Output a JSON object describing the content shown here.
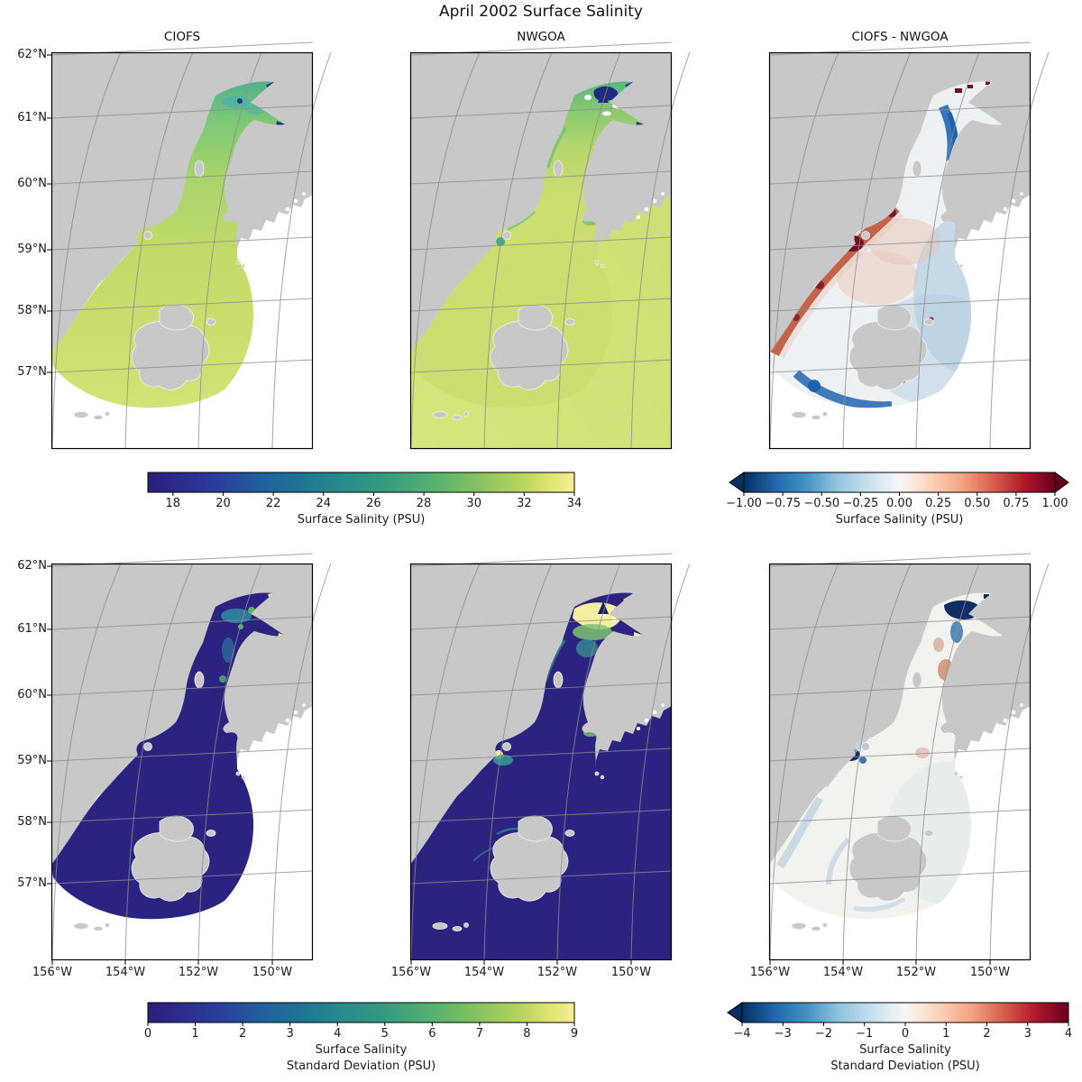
{
  "figure": {
    "title": "April 2002 Surface Salinity"
  },
  "panels": [
    {
      "key": "ciofs_sal",
      "title": "CIOFS",
      "row": 0,
      "col": 0,
      "style": "ciofs",
      "colors": {
        "gradTop": "#4fb289",
        "grad1": "#7cc877",
        "grad2": "#a6d36c",
        "grad3": "#c0da6a",
        "gradBottom": "#d3e275",
        "armTip": "#1d3b8c",
        "teal": "#4fb3a4"
      }
    },
    {
      "key": "nwgoa_sal",
      "title": "NWGOA",
      "row": 0,
      "col": 1,
      "style": "nwgoa",
      "colors": {
        "ocean": "#cbde72",
        "oceanLight": "#d7e57d",
        "gradTop": "#57b77f",
        "grad1": "#8cca70",
        "grad2": "#b4d66c",
        "freshPatch": "#202b80",
        "tealSpot": "#3aa189",
        "fringe": "#6fc276",
        "armTip": "#2a3a8f"
      }
    },
    {
      "key": "diff_sal",
      "title": "CIOFS - NWGOA",
      "row": 0,
      "col": 2,
      "style": "diff",
      "colors": {
        "base": "#eef1f3",
        "paleBlue": "#b7d0e3",
        "blue": "#2e6db6",
        "blueDark": "#1b5fa8",
        "red": "#bb4f33",
        "pink": "#e8c4b4",
        "darkRed": "#6f0e20"
      }
    },
    {
      "key": "ciofs_std",
      "title": "",
      "row": 1,
      "col": 0,
      "style": "ciofs",
      "colors": {
        "base": "#2a2480",
        "teal": "#2f86a0",
        "green": "#5ab45e",
        "yellow": "#e9e973"
      }
    },
    {
      "key": "nwgoa_std",
      "title": "",
      "row": 1,
      "col": 1,
      "style": "nwgoa",
      "colors": {
        "ocean": "#2a2480",
        "base": "#2a2480",
        "yellow": "#f2f0a0",
        "green": "#7cc46e",
        "teal": "#3a9a96",
        "navySpike": "#1c2068"
      }
    },
    {
      "key": "diff_std",
      "title": "",
      "row": 1,
      "col": 2,
      "style": "diff",
      "colors": {
        "base": "#f2f2ef",
        "navy": "#122d66",
        "blue": "#3a78b4",
        "blueLight": "#a9c6dc",
        "red": "#c98a72"
      }
    }
  ],
  "axes": {
    "lat_labels": [
      "62°N",
      "61°N",
      "60°N",
      "59°N",
      "58°N",
      "57°N"
    ],
    "lon_labels": [
      "156°W",
      "154°W",
      "152°W",
      "150°W"
    ]
  },
  "map_colors": {
    "land": "#c8c8c8",
    "ocean_outside": "#ffffff",
    "grid": "#8d8d8d",
    "coast_speck": "#ffffff"
  },
  "colormaps": {
    "haline": [
      [
        0,
        "#2c1f78"
      ],
      [
        0.1,
        "#2c2f92"
      ],
      [
        0.18,
        "#2a429c"
      ],
      [
        0.27,
        "#20609c"
      ],
      [
        0.35,
        "#1d7394"
      ],
      [
        0.45,
        "#268a8a"
      ],
      [
        0.55,
        "#35997f"
      ],
      [
        0.65,
        "#4fae71"
      ],
      [
        0.76,
        "#7fc062"
      ],
      [
        0.87,
        "#b5d25f"
      ],
      [
        0.94,
        "#dde46f"
      ],
      [
        1,
        "#f5ef95"
      ]
    ],
    "rdbu": [
      [
        0,
        "#053061"
      ],
      [
        0.1,
        "#2166ac"
      ],
      [
        0.2,
        "#4393c3"
      ],
      [
        0.3,
        "#92c5de"
      ],
      [
        0.42,
        "#d1e5f0"
      ],
      [
        0.5,
        "#f7f7f7"
      ],
      [
        0.58,
        "#fddbc7"
      ],
      [
        0.7,
        "#f4a582"
      ],
      [
        0.8,
        "#d6604d"
      ],
      [
        0.9,
        "#b2182b"
      ],
      [
        1,
        "#67001f"
      ]
    ]
  },
  "colorbars": [
    {
      "label": "Surface Salinity (PSU)",
      "colormap": "haline",
      "vmin": 17,
      "vmax": 34,
      "extend": "neither",
      "tick_values": [
        18,
        20,
        22,
        24,
        26,
        28,
        30,
        32,
        34
      ],
      "tick_labels": [
        "18",
        "20",
        "22",
        "24",
        "26",
        "28",
        "30",
        "32",
        "34"
      ]
    },
    {
      "label": "Surface Salinity (PSU)",
      "colormap": "rdbu",
      "vmin": -1,
      "vmax": 1,
      "extend": "both",
      "tick_values": [
        -1,
        -0.75,
        -0.5,
        -0.25,
        0,
        0.25,
        0.5,
        0.75,
        1
      ],
      "tick_labels": [
        "−1.00",
        "−0.75",
        "−0.50",
        "−0.25",
        "0.00",
        "0.25",
        "0.50",
        "0.75",
        "1.00"
      ]
    },
    {
      "label_lines": [
        "Surface Salinity",
        "Standard Deviation (PSU)"
      ],
      "colormap": "haline",
      "vmin": 0,
      "vmax": 9,
      "extend": "neither",
      "tick_values": [
        0,
        1,
        2,
        3,
        4,
        5,
        6,
        7,
        8,
        9
      ],
      "tick_labels": [
        "0",
        "1",
        "2",
        "3",
        "4",
        "5",
        "6",
        "7",
        "8",
        "9"
      ]
    },
    {
      "label_lines": [
        "Surface Salinity",
        "Standard Deviation (PSU)"
      ],
      "colormap": "rdbu",
      "vmin": -4,
      "vmax": 4,
      "extend": "min",
      "tick_values": [
        -4,
        -3,
        -2,
        -1,
        0,
        1,
        2,
        3,
        4
      ],
      "tick_labels": [
        "−4",
        "−3",
        "−2",
        "−1",
        "0",
        "1",
        "2",
        "3",
        "4"
      ]
    }
  ],
  "chart_data": [
    {
      "type": "heatmap",
      "panel_title": "CIOFS",
      "variable": "Surface Salinity (PSU)",
      "time": "April 2002",
      "colormap": "haline",
      "vmin": 17,
      "vmax": 34,
      "colorbar_ticks": [
        18,
        20,
        22,
        24,
        26,
        28,
        30,
        32,
        34
      ],
      "lat_ticks_deg_n": [
        62,
        61,
        60,
        59,
        58,
        57
      ],
      "lon_ticks_deg_w": [
        156,
        154,
        152,
        150
      ],
      "approx_regional_values_psu": {
        "outer_gulf_fan": 31.5,
        "lower_cook_inlet": 30.5,
        "mid_cook_inlet": 28,
        "upper_cook_inlet": 24,
        "knik_turnagain_arm_tips": 18
      }
    },
    {
      "type": "heatmap",
      "panel_title": "NWGOA",
      "variable": "Surface Salinity (PSU)",
      "time": "April 2002",
      "colormap": "haline",
      "vmin": 17,
      "vmax": 34,
      "colorbar_ticks": [
        18,
        20,
        22,
        24,
        26,
        28,
        30,
        32,
        34
      ],
      "lat_ticks_deg_n": [
        62,
        61,
        60,
        59,
        58,
        57
      ],
      "lon_ticks_deg_w": [
        156,
        154,
        152,
        150
      ],
      "approx_regional_values_psu": {
        "gulf_of_alaska_shelf": 31.5,
        "shelikof_strait": 31,
        "mid_cook_inlet": 29,
        "upper_cook_inlet": 25,
        "upper_arm_tidal_flats": 17
      }
    },
    {
      "type": "heatmap",
      "panel_title": "CIOFS - NWGOA",
      "variable": "Surface Salinity difference (PSU)",
      "time": "April 2002",
      "colormap": "RdBu_r",
      "vmin": -1,
      "vmax": 1,
      "extend": "both",
      "colorbar_ticks": [
        -1,
        -0.75,
        -0.5,
        -0.25,
        0,
        0.25,
        0.5,
        0.75,
        1
      ],
      "approx_regional_values_psu": {
        "west_coast_kamishak_band": 0.8,
        "shelikof_west_shore": 0.5,
        "mid_inlet_channel": -0.9,
        "outer_fan": -0.3,
        "south_of_kodiak": -0.8,
        "upper_inlet_specks": 1.0
      }
    },
    {
      "type": "heatmap",
      "panel_title": "CIOFS",
      "variable": "Surface Salinity Standard Deviation (PSU)",
      "time": "April 2002",
      "colormap": "haline",
      "vmin": 0,
      "vmax": 9,
      "colorbar_ticks": [
        0,
        1,
        2,
        3,
        4,
        5,
        6,
        7,
        8,
        9
      ],
      "approx_regional_values_psu": {
        "most_of_domain": 0.5,
        "upper_inlet": 3,
        "arm_tips": 8
      }
    },
    {
      "type": "heatmap",
      "panel_title": "NWGOA",
      "variable": "Surface Salinity Standard Deviation (PSU)",
      "time": "April 2002",
      "colormap": "haline",
      "vmin": 0,
      "vmax": 9,
      "colorbar_ticks": [
        0,
        1,
        2,
        3,
        4,
        5,
        6,
        7,
        8,
        9
      ],
      "approx_regional_values_psu": {
        "gulf_of_alaska": 0.4,
        "upper_inlet_tidal_flats": 8.5,
        "kamishak_bay_spot": 6,
        "coastal_fringes": 2
      }
    },
    {
      "type": "heatmap",
      "panel_title": "CIOFS - NWGOA",
      "variable": "Surface Salinity Standard Deviation difference (PSU)",
      "time": "April 2002",
      "colormap": "RdBu_r",
      "vmin": -4,
      "vmax": 4,
      "extend": "min",
      "colorbar_ticks": [
        -4,
        -3,
        -2,
        -1,
        0,
        1,
        2,
        3,
        4
      ],
      "approx_regional_values_psu": {
        "most_of_domain": -0.2,
        "upper_inlet": -3.5,
        "kamishak_bay": -3,
        "mid_inlet_patches": 1
      }
    }
  ]
}
